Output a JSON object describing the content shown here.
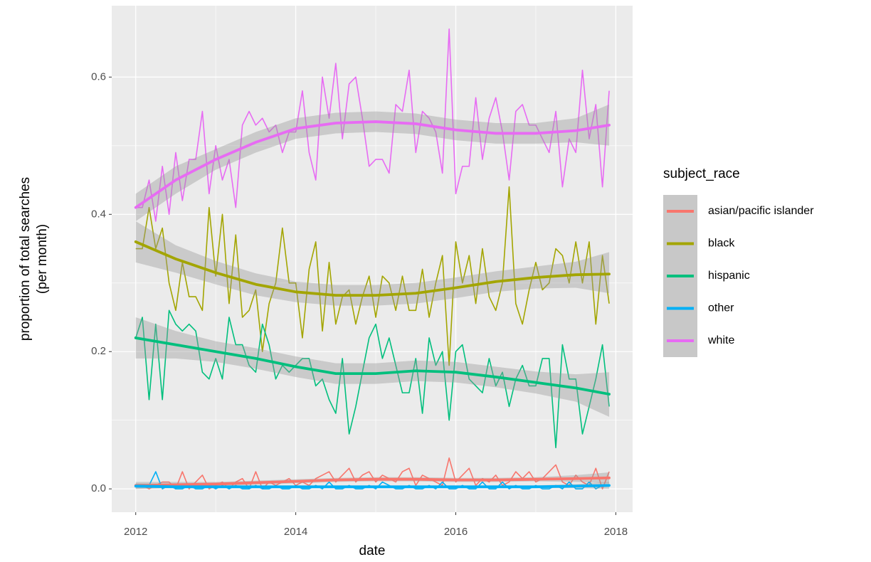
{
  "chart_data": {
    "type": "line",
    "xlabel": "date",
    "ylabel": [
      "proportion of total searches",
      "(per month)"
    ],
    "legend_title": "subject_race",
    "legend_position": "right",
    "grid": true,
    "xlim": [
      2011.7,
      2018.21
    ],
    "ylim": [
      -0.034,
      0.704
    ],
    "xticks": [
      2012,
      2014,
      2016,
      2018
    ],
    "yticks": [
      {
        "value": 0,
        "label": "0.0"
      },
      0.2,
      0.4,
      0.6
    ],
    "x": [
      2012,
      2012.083,
      2012.167,
      2012.25,
      2012.333,
      2012.417,
      2012.5,
      2012.583,
      2012.667,
      2012.75,
      2012.833,
      2012.917,
      2013,
      2013.083,
      2013.167,
      2013.25,
      2013.333,
      2013.417,
      2013.5,
      2013.583,
      2013.667,
      2013.75,
      2013.833,
      2013.917,
      2014,
      2014.083,
      2014.167,
      2014.25,
      2014.333,
      2014.417,
      2014.5,
      2014.583,
      2014.667,
      2014.75,
      2014.833,
      2014.917,
      2015,
      2015.083,
      2015.167,
      2015.25,
      2015.333,
      2015.417,
      2015.5,
      2015.583,
      2015.667,
      2015.75,
      2015.833,
      2015.917,
      2016,
      2016.083,
      2016.167,
      2016.25,
      2016.333,
      2016.417,
      2016.5,
      2016.583,
      2016.667,
      2016.75,
      2016.833,
      2016.917,
      2017,
      2017.083,
      2017.167,
      2017.25,
      2017.333,
      2017.417,
      2017.5,
      2017.583,
      2017.667,
      2017.75,
      2017.833,
      2017.917
    ],
    "smooth_x": [
      2012,
      2012.5,
      2013,
      2013.5,
      2014,
      2014.5,
      2015,
      2015.5,
      2016,
      2016.5,
      2017,
      2017.5,
      2017.917
    ],
    "series": [
      {
        "name": "asian/pacific islander",
        "color": "#F8766D",
        "values": [
          0.005,
          0.005,
          0,
          0.005,
          0.01,
          0.01,
          0,
          0.025,
          0,
          0.01,
          0.02,
          0,
          0.005,
          0.01,
          0,
          0.01,
          0.015,
          0,
          0.025,
          0,
          0.01,
          0.005,
          0.01,
          0.015,
          0.005,
          0.01,
          0.005,
          0.015,
          0.02,
          0.025,
          0.01,
          0.02,
          0.03,
          0.01,
          0.02,
          0.025,
          0.01,
          0.02,
          0.015,
          0.01,
          0.025,
          0.03,
          0.005,
          0.02,
          0.015,
          0.01,
          0.005,
          0.045,
          0.01,
          0.02,
          0.03,
          0.005,
          0.015,
          0.01,
          0.02,
          0.005,
          0.01,
          0.025,
          0.015,
          0.025,
          0.01,
          0.015,
          0.025,
          0.035,
          0.01,
          0.005,
          0.02,
          0.01,
          0.005,
          0.03,
          0,
          0.025
        ],
        "smooth": [
          0.005,
          0.006,
          0.007,
          0.009,
          0.011,
          0.013,
          0.014,
          0.014,
          0.013,
          0.013,
          0.014,
          0.015,
          0.016
        ],
        "smooth_lower": [
          0,
          0.002,
          0.004,
          0.006,
          0.008,
          0.01,
          0.011,
          0.011,
          0.01,
          0.01,
          0.011,
          0.01,
          0.008
        ],
        "smooth_upper": [
          0.01,
          0.01,
          0.01,
          0.012,
          0.014,
          0.016,
          0.017,
          0.017,
          0.016,
          0.016,
          0.017,
          0.02,
          0.024
        ]
      },
      {
        "name": "black",
        "color": "#A3A500",
        "values": [
          0.35,
          0.35,
          0.41,
          0.35,
          0.38,
          0.3,
          0.26,
          0.33,
          0.28,
          0.28,
          0.26,
          0.41,
          0.31,
          0.4,
          0.27,
          0.37,
          0.25,
          0.26,
          0.29,
          0.2,
          0.27,
          0.3,
          0.38,
          0.3,
          0.3,
          0.22,
          0.32,
          0.36,
          0.23,
          0.33,
          0.24,
          0.28,
          0.29,
          0.24,
          0.28,
          0.31,
          0.25,
          0.31,
          0.3,
          0.26,
          0.31,
          0.26,
          0.26,
          0.32,
          0.25,
          0.3,
          0.34,
          0.18,
          0.36,
          0.3,
          0.34,
          0.27,
          0.35,
          0.28,
          0.26,
          0.3,
          0.44,
          0.27,
          0.24,
          0.29,
          0.33,
          0.29,
          0.3,
          0.35,
          0.34,
          0.3,
          0.36,
          0.3,
          0.36,
          0.24,
          0.34,
          0.27
        ],
        "smooth": [
          0.36,
          0.335,
          0.315,
          0.298,
          0.287,
          0.282,
          0.282,
          0.285,
          0.293,
          0.302,
          0.308,
          0.312,
          0.313
        ],
        "smooth_lower": [
          0.33,
          0.315,
          0.298,
          0.282,
          0.272,
          0.267,
          0.267,
          0.27,
          0.278,
          0.287,
          0.292,
          0.293,
          0.285
        ],
        "smooth_upper": [
          0.39,
          0.355,
          0.332,
          0.314,
          0.302,
          0.297,
          0.297,
          0.3,
          0.308,
          0.317,
          0.324,
          0.331,
          0.345
        ]
      },
      {
        "name": "hispanic",
        "color": "#00BF7D",
        "values": [
          0.22,
          0.25,
          0.13,
          0.24,
          0.13,
          0.26,
          0.24,
          0.23,
          0.24,
          0.23,
          0.17,
          0.16,
          0.19,
          0.16,
          0.25,
          0.21,
          0.21,
          0.18,
          0.17,
          0.24,
          0.21,
          0.16,
          0.18,
          0.17,
          0.18,
          0.19,
          0.19,
          0.15,
          0.16,
          0.13,
          0.11,
          0.19,
          0.08,
          0.12,
          0.17,
          0.22,
          0.24,
          0.19,
          0.22,
          0.18,
          0.14,
          0.14,
          0.19,
          0.11,
          0.22,
          0.18,
          0.2,
          0.1,
          0.2,
          0.21,
          0.16,
          0.15,
          0.14,
          0.19,
          0.15,
          0.17,
          0.12,
          0.16,
          0.18,
          0.15,
          0.15,
          0.19,
          0.19,
          0.06,
          0.21,
          0.16,
          0.16,
          0.08,
          0.12,
          0.16,
          0.21,
          0.12
        ],
        "smooth": [
          0.22,
          0.21,
          0.2,
          0.19,
          0.178,
          0.168,
          0.168,
          0.172,
          0.17,
          0.163,
          0.155,
          0.147,
          0.138
        ],
        "smooth_lower": [
          0.19,
          0.19,
          0.185,
          0.175,
          0.163,
          0.153,
          0.153,
          0.157,
          0.155,
          0.148,
          0.139,
          0.127,
          0.105
        ],
        "smooth_upper": [
          0.25,
          0.23,
          0.215,
          0.205,
          0.193,
          0.183,
          0.183,
          0.187,
          0.185,
          0.178,
          0.171,
          0.167,
          0.17
        ]
      },
      {
        "name": "other",
        "color": "#00B0F6",
        "values": [
          0.005,
          0.005,
          0.005,
          0.025,
          0,
          0.005,
          0,
          0,
          0.005,
          0,
          0,
          0.005,
          0,
          0.005,
          0,
          0.005,
          0,
          0,
          0.005,
          0,
          0,
          0.005,
          0,
          0,
          0.005,
          0,
          0,
          0.005,
          0,
          0.01,
          0,
          0,
          0.005,
          0,
          0,
          0.005,
          0,
          0.01,
          0.005,
          0,
          0,
          0.005,
          0,
          0,
          0.005,
          0,
          0.01,
          0,
          0,
          0.005,
          0,
          0,
          0.01,
          0,
          0,
          0.01,
          0,
          0.005,
          0,
          0,
          0.005,
          0,
          0,
          0.005,
          0,
          0.01,
          0,
          0,
          0.01,
          0,
          0.005,
          0.005
        ],
        "smooth": [
          0.004,
          0.003,
          0.003,
          0.003,
          0.003,
          0.003,
          0.003,
          0.003,
          0.003,
          0.003,
          0.003,
          0.004,
          0.005
        ],
        "smooth_lower": [
          0,
          0.001,
          0.001,
          0.001,
          0.001,
          0.001,
          0.001,
          0.001,
          0.001,
          0.001,
          0.001,
          0.001,
          0
        ],
        "smooth_upper": [
          0.008,
          0.005,
          0.005,
          0.005,
          0.005,
          0.005,
          0.005,
          0.005,
          0.005,
          0.005,
          0.005,
          0.007,
          0.01
        ]
      },
      {
        "name": "white",
        "color": "#E76BF3",
        "values": [
          0.41,
          0.41,
          0.45,
          0.39,
          0.47,
          0.4,
          0.49,
          0.42,
          0.48,
          0.48,
          0.55,
          0.43,
          0.5,
          0.45,
          0.48,
          0.41,
          0.53,
          0.55,
          0.53,
          0.54,
          0.52,
          0.53,
          0.49,
          0.52,
          0.52,
          0.58,
          0.49,
          0.45,
          0.6,
          0.54,
          0.62,
          0.51,
          0.59,
          0.6,
          0.54,
          0.47,
          0.48,
          0.48,
          0.46,
          0.56,
          0.55,
          0.61,
          0.49,
          0.55,
          0.54,
          0.52,
          0.46,
          0.67,
          0.43,
          0.47,
          0.47,
          0.57,
          0.48,
          0.54,
          0.57,
          0.52,
          0.45,
          0.55,
          0.56,
          0.53,
          0.53,
          0.51,
          0.49,
          0.55,
          0.44,
          0.51,
          0.49,
          0.61,
          0.51,
          0.56,
          0.44,
          0.58
        ],
        "smooth": [
          0.41,
          0.45,
          0.48,
          0.505,
          0.525,
          0.533,
          0.535,
          0.532,
          0.523,
          0.518,
          0.518,
          0.522,
          0.53
        ],
        "smooth_lower": [
          0.39,
          0.43,
          0.465,
          0.49,
          0.51,
          0.518,
          0.52,
          0.517,
          0.508,
          0.503,
          0.503,
          0.505,
          0.5
        ],
        "smooth_upper": [
          0.43,
          0.47,
          0.495,
          0.52,
          0.54,
          0.548,
          0.55,
          0.547,
          0.538,
          0.533,
          0.533,
          0.54,
          0.56
        ]
      }
    ]
  }
}
